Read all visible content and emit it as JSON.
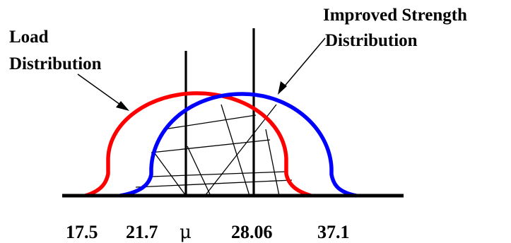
{
  "labels": {
    "load_line1": "Load",
    "load_line2": "Distribution",
    "strength_line1": "Improved Strength",
    "strength_line2": "Distribution"
  },
  "axis_ticks": [
    "17.5",
    "21.7",
    "μ",
    "28.06",
    "37.1"
  ],
  "colors": {
    "load_curve": "#ff0000",
    "strength_curve": "#0000ff",
    "lines": "#000000"
  }
}
